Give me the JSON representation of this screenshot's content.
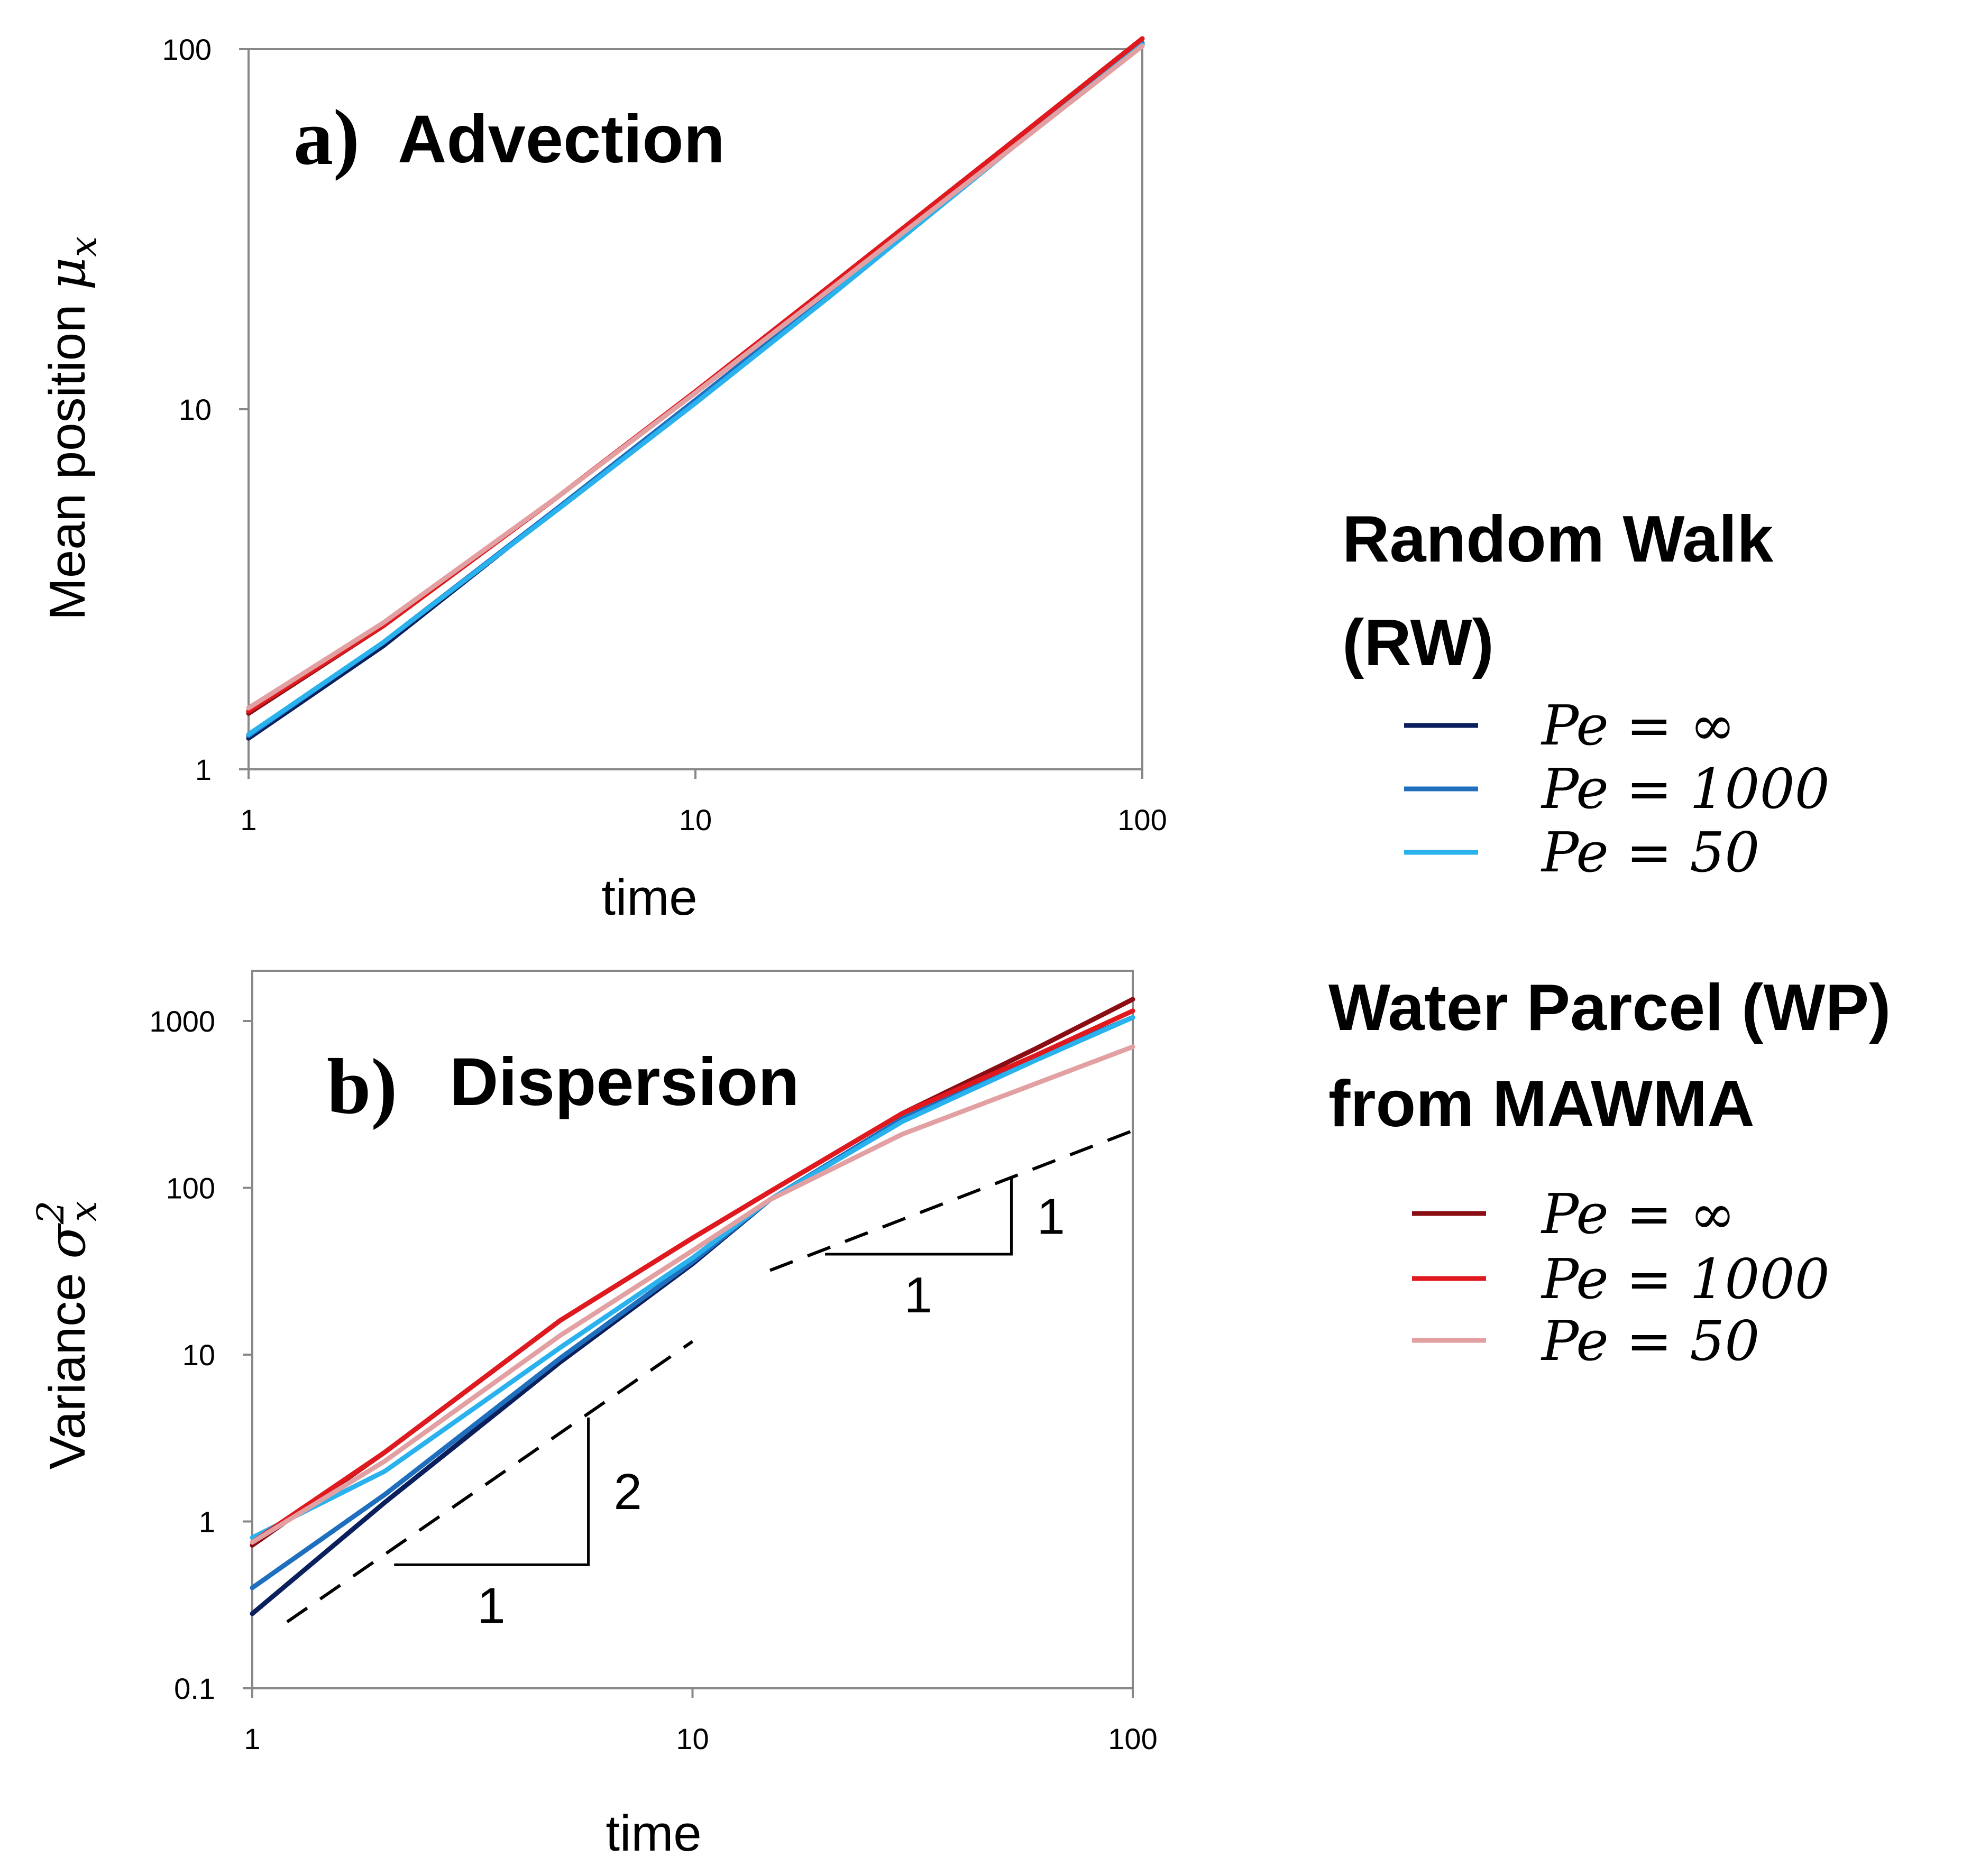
{
  "chart_data": [
    {
      "id": "a",
      "type": "line",
      "xscale": "log",
      "yscale": "log",
      "panel_letter": "a)",
      "title": "Advection",
      "xlabel": "time",
      "ylabel": "Mean position",
      "ylabel_symbol": "μ",
      "ylabel_subscript": "x",
      "xlim": [
        1,
        100
      ],
      "ylim": [
        1,
        100
      ],
      "xticks": [
        1,
        10,
        100
      ],
      "yticks": [
        1,
        10,
        100
      ],
      "xtick_labels": [
        "1",
        "10",
        "100"
      ],
      "ytick_labels": [
        "1",
        "10",
        "100"
      ],
      "series": [
        {
          "name": "RW Pe = ∞",
          "color": "#0b1f5c",
          "x": [
            1,
            2,
            5,
            10,
            20,
            50,
            100
          ],
          "y": [
            1.22,
            2.2,
            5.4,
            10.6,
            21.0,
            52.5,
            104
          ]
        },
        {
          "name": "RW Pe = 1000",
          "color": "#1f6fbf",
          "x": [
            1,
            2,
            5,
            10,
            20,
            50,
            100
          ],
          "y": [
            1.24,
            2.25,
            5.4,
            10.6,
            21.0,
            52.5,
            104
          ]
        },
        {
          "name": "RW Pe = 50",
          "color": "#29b2ee",
          "x": [
            1,
            2,
            5,
            10,
            20,
            50,
            100
          ],
          "y": [
            1.25,
            2.25,
            5.35,
            10.4,
            20.6,
            52.0,
            103
          ]
        },
        {
          "name": "WP Pe = ∞",
          "color": "#8b0d14",
          "x": [
            1,
            2,
            5,
            10,
            20,
            50,
            100
          ],
          "y": [
            1.43,
            2.5,
            5.8,
            11.2,
            22.0,
            54.0,
            107
          ]
        },
        {
          "name": "WP Pe = 1000",
          "color": "#e0191f",
          "x": [
            1,
            2,
            5,
            10,
            20,
            50,
            100
          ],
          "y": [
            1.45,
            2.5,
            5.8,
            11.2,
            22.0,
            54.0,
            107
          ]
        },
        {
          "name": "WP Pe = 50",
          "color": "#e3a0a3",
          "x": [
            1,
            2,
            5,
            10,
            20,
            50,
            100
          ],
          "y": [
            1.48,
            2.55,
            5.8,
            11.1,
            21.5,
            52.0,
            102
          ]
        }
      ]
    },
    {
      "id": "b",
      "type": "line",
      "xscale": "log",
      "yscale": "log",
      "panel_letter": "b)",
      "title": "Dispersion",
      "xlabel": "time",
      "ylabel": "Variance",
      "ylabel_symbol": "σ",
      "ylabel_subscript": "x",
      "ylabel_superscript": "2",
      "xlim": [
        1,
        100
      ],
      "ylim": [
        0.1,
        2000
      ],
      "xticks": [
        1,
        10,
        100
      ],
      "yticks": [
        0.1,
        1,
        10,
        100,
        1000
      ],
      "xtick_labels": [
        "1",
        "10",
        "100"
      ],
      "ytick_labels": [
        "0.1",
        "1",
        "10",
        "100",
        "1000"
      ],
      "series": [
        {
          "name": "RW Pe = ∞",
          "color": "#0b1f5c",
          "x": [
            1,
            2,
            5,
            10,
            15,
            30,
            60,
            100
          ],
          "y": [
            0.28,
            1.3,
            9,
            35,
            85,
            260,
            600,
            1050
          ]
        },
        {
          "name": "RW Pe = 1000",
          "color": "#1f6fbf",
          "x": [
            1,
            2,
            5,
            10,
            15,
            30,
            60,
            100
          ],
          "y": [
            0.4,
            1.45,
            9.5,
            36,
            85,
            260,
            600,
            1050
          ]
        },
        {
          "name": "RW Pe = 50",
          "color": "#29b2ee",
          "x": [
            1,
            2,
            5,
            10,
            15,
            30,
            60,
            100
          ],
          "y": [
            0.8,
            2.0,
            11,
            38,
            85,
            250,
            580,
            1050
          ]
        },
        {
          "name": "WP Pe = ∞",
          "color": "#8b0d14",
          "x": [
            1,
            2,
            5,
            10,
            15,
            30,
            60,
            80,
            100
          ],
          "y": [
            0.72,
            2.6,
            16,
            50,
            95,
            280,
            680,
            1000,
            1350
          ]
        },
        {
          "name": "WP Pe = 1000",
          "color": "#e0191f",
          "x": [
            1,
            2,
            5,
            10,
            15,
            30,
            60,
            100
          ],
          "y": [
            0.75,
            2.6,
            16,
            50,
            95,
            280,
            620,
            1150
          ]
        },
        {
          "name": "WP Pe = 50",
          "color": "#e3a0a3",
          "x": [
            1,
            2,
            5,
            10,
            15,
            30,
            60,
            100
          ],
          "y": [
            0.75,
            2.3,
            13,
            42,
            85,
            210,
            420,
            700
          ]
        }
      ],
      "reference_lines": [
        {
          "label": "slope 2",
          "x": [
            1.2,
            10
          ],
          "y": [
            0.25,
            12
          ]
        },
        {
          "label": "slope 1",
          "x": [
            15,
            100
          ],
          "y": [
            32,
            220
          ]
        }
      ],
      "slope_triangles": [
        {
          "run_label": "1",
          "rise_label": "2",
          "x": [
            2.1,
            5.8
          ],
          "y": [
            0.55,
            4.2
          ]
        },
        {
          "run_label": "1",
          "rise_label": "1",
          "x": [
            20,
            53
          ],
          "y": [
            40,
            115
          ]
        }
      ]
    }
  ],
  "legend": {
    "groups": [
      {
        "title_lines": [
          "Random Walk",
          "(RW)"
        ],
        "items": [
          {
            "label": "Pe = ∞",
            "color": "#0b1f5c"
          },
          {
            "label": "Pe = 1000",
            "color": "#1f6fbf"
          },
          {
            "label": "Pe = 50",
            "color": "#29b2ee"
          }
        ]
      },
      {
        "title_lines": [
          "Water Parcel (WP)",
          "from MAWMA"
        ],
        "items": [
          {
            "label": "Pe = ∞",
            "color": "#8b0d14"
          },
          {
            "label": "Pe = 1000",
            "color": "#e0191f"
          },
          {
            "label": "Pe = 50",
            "color": "#e3a0a3"
          }
        ]
      }
    ]
  }
}
